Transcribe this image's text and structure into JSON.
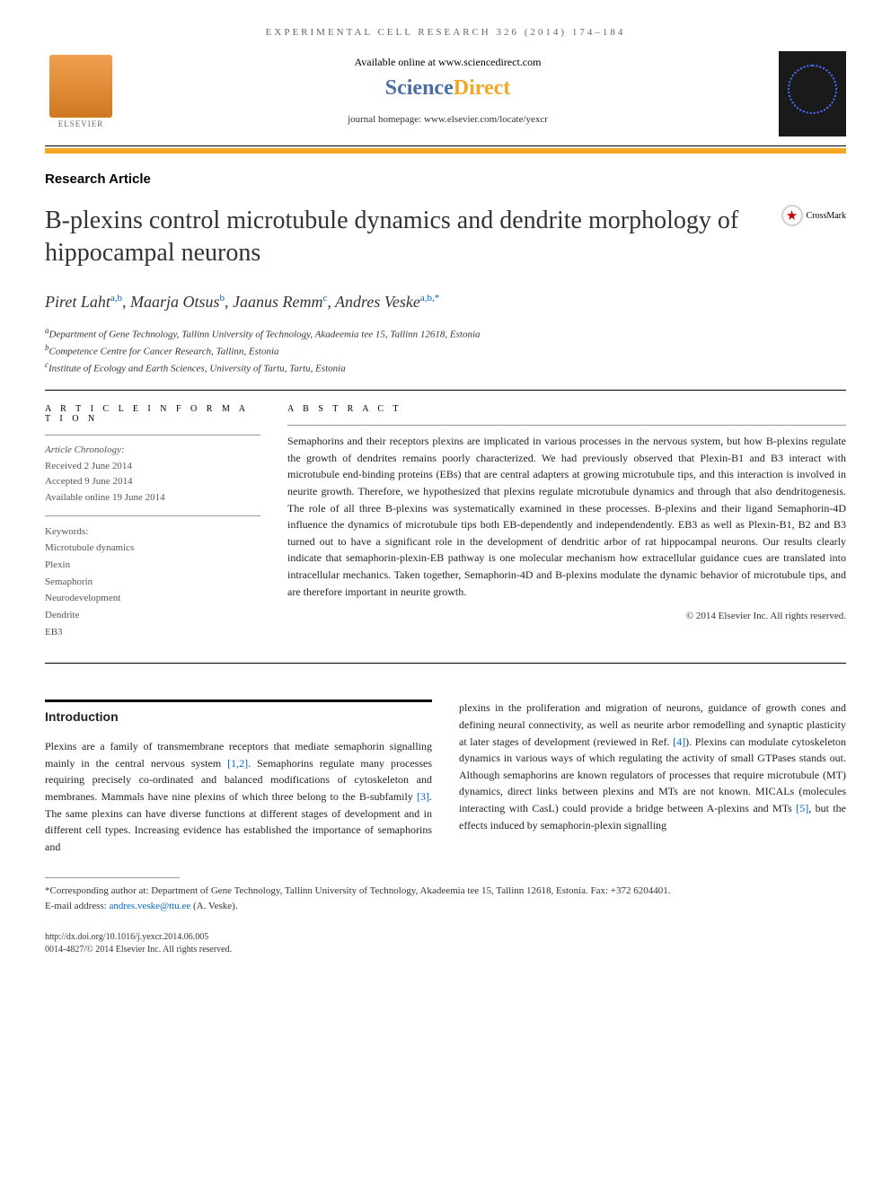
{
  "header": {
    "running_head": "EXPERIMENTAL CELL RESEARCH 326 (2014) 174–184",
    "available": "Available online at www.sciencedirect.com",
    "sd_science": "Science",
    "sd_direct": "Direct",
    "homepage": "journal homepage: www.elsevier.com/locate/yexcr",
    "elsevier": "ELSEVIER",
    "crossmark": "CrossMark"
  },
  "article": {
    "type": "Research Article",
    "title": "B-plexins control microtubule dynamics and dendrite morphology of hippocampal neurons",
    "authors_html_parts": {
      "a1": "Piret Laht",
      "a1_aff": "a,b",
      "a2": ", Maarja Otsus",
      "a2_aff": "b",
      "a3": ", Jaanus Remm",
      "a3_aff": "c",
      "a4": ", Andres Veske",
      "a4_aff": "a,b,",
      "star": "*"
    },
    "affiliations": {
      "a": "Department of Gene Technology, Tallinn University of Technology, Akadeemia tee 15, Tallinn 12618, Estonia",
      "b": "Competence Centre for Cancer Research, Tallinn, Estonia",
      "c": "Institute of Ecology and Earth Sciences, University of Tartu, Tartu, Estonia"
    }
  },
  "info": {
    "heading": "A R T I C L E  I N F O R M A T I O N",
    "chronology_label": "Article Chronology:",
    "received": "Received 2 June 2014",
    "accepted": "Accepted 9 June 2014",
    "online": "Available online 19 June 2014",
    "keywords_label": "Keywords:",
    "keywords": [
      "Microtubule dynamics",
      "Plexin",
      "Semaphorin",
      "Neurodevelopment",
      "Dendrite",
      "EB3"
    ]
  },
  "abstract": {
    "heading": "A B S T R A C T",
    "text": "Semaphorins and their receptors plexins are implicated in various processes in the nervous system, but how B-plexins regulate the growth of dendrites remains poorly characterized. We had previously observed that Plexin-B1 and B3 interact with microtubule end-binding proteins (EBs) that are central adapters at growing microtubule tips, and this interaction is involved in neurite growth. Therefore, we hypothesized that plexins regulate microtubule dynamics and through that also dendritogenesis. The role of all three B-plexins was systematically examined in these processes. B-plexins and their ligand Semaphorin-4D influence the dynamics of microtubule tips both EB-dependently and independendently. EB3 as well as Plexin-B1, B2 and B3 turned out to have a significant role in the development of dendritic arbor of rat hippocampal neurons. Our results clearly indicate that semaphorin-plexin-EB pathway is one molecular mechanism how extracellular guidance cues are translated into intracellular mechanics. Taken together, Semaphorin-4D and B-plexins modulate the dynamic behavior of microtubule tips, and are therefore important in neurite growth.",
    "copyright": "© 2014 Elsevier Inc. All rights reserved."
  },
  "body": {
    "intro_heading": "Introduction",
    "col1_pre": "Plexins are a family of transmembrane receptors that mediate semaphorin signalling mainly in the central nervous system ",
    "ref12": "[1,2]",
    "col1_mid": ". Semaphorins regulate many processes requiring precisely co-ordinated and balanced modifications of cytoskeleton and membranes. Mammals have nine plexins of which three belong to the B-subfamily ",
    "ref3": "[3]",
    "col1_post": ". The same plexins can have diverse functions at different stages of development and in different cell types. Increasing evidence has established the importance of semaphorins and",
    "col2_pre": "plexins in the proliferation and migration of neurons, guidance of growth cones and defining neural connectivity, as well as neurite arbor remodelling and synaptic plasticity at later stages of development (reviewed in Ref. ",
    "ref4": "[4]",
    "col2_mid": "). Plexins can modulate cytoskeleton dynamics in various ways of which regulating the activity of small GTPases stands out. Although semaphorins are known regulators of processes that require microtubule (MT) dynamics, direct links between plexins and MTs are not known. MICALs (molecules interacting with CasL) could provide a bridge between A-plexins and MTs ",
    "ref5": "[5]",
    "col2_post": ", but the effects induced by semaphorin-plexin signalling"
  },
  "footnotes": {
    "corresp": "*Corresponding author at: Department of Gene Technology, Tallinn University of Technology, Akadeemia tee 15, Tallinn 12618, Estonia. Fax: +372 6204401.",
    "email_label": "E-mail address: ",
    "email": "andres.veske@ttu.ee",
    "email_who": " (A. Veske)."
  },
  "doi": {
    "url": "http://dx.doi.org/10.1016/j.yexcr.2014.06.005",
    "issn_copy": "0014-4827/© 2014 Elsevier Inc. All rights reserved."
  },
  "colors": {
    "orange": "#f5a623",
    "link": "#0066cc",
    "sd_blue": "#4a6fa5"
  }
}
